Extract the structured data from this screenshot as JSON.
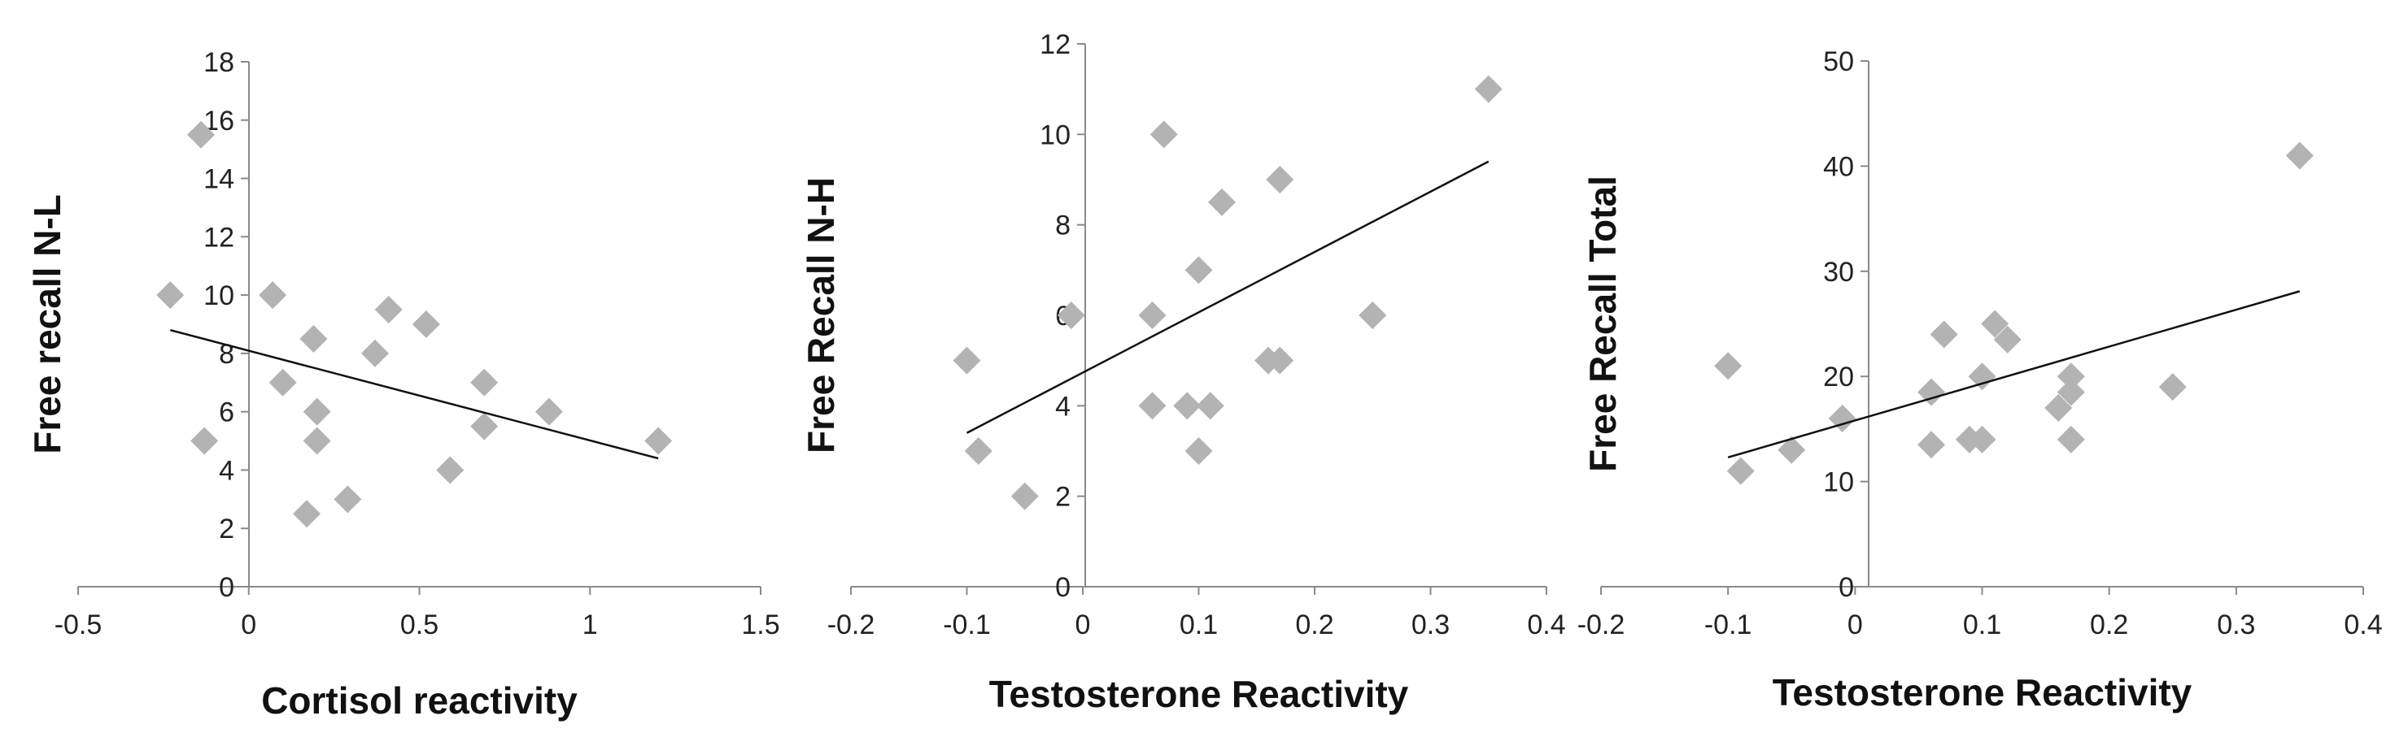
{
  "colors": {
    "marker": "#b3b3b3",
    "axis": "#8a8a8a",
    "trendline": "#111111",
    "text": "#222222"
  },
  "chart_data": [
    {
      "type": "scatter",
      "title": "",
      "xlabel": "Cortisol reactivity",
      "ylabel": "Free recall N-L",
      "xlim": [
        -0.5,
        1.5
      ],
      "ylim": [
        0,
        18
      ],
      "xticks": [
        -0.5,
        0,
        0.5,
        1,
        1.5
      ],
      "xtick_labels": [
        "-0.5",
        "0",
        "0.5",
        "1",
        "1.5"
      ],
      "yticks": [
        0,
        2,
        4,
        6,
        8,
        10,
        12,
        14,
        16,
        18
      ],
      "ytick_labels": [
        "0",
        "2",
        "4",
        "6",
        "8",
        "10",
        "12",
        "14",
        "16",
        "18"
      ],
      "points": [
        {
          "x": -0.23,
          "y": 10
        },
        {
          "x": -0.14,
          "y": 15.5
        },
        {
          "x": -0.13,
          "y": 5
        },
        {
          "x": 0.07,
          "y": 10
        },
        {
          "x": 0.1,
          "y": 7
        },
        {
          "x": 0.19,
          "y": 8.5
        },
        {
          "x": 0.2,
          "y": 6
        },
        {
          "x": 0.2,
          "y": 5
        },
        {
          "x": 0.17,
          "y": 2.5
        },
        {
          "x": 0.29,
          "y": 3
        },
        {
          "x": 0.37,
          "y": 8
        },
        {
          "x": 0.41,
          "y": 9.5
        },
        {
          "x": 0.52,
          "y": 9
        },
        {
          "x": 0.59,
          "y": 4
        },
        {
          "x": 0.69,
          "y": 7
        },
        {
          "x": 0.69,
          "y": 5.5
        },
        {
          "x": 0.88,
          "y": 6
        },
        {
          "x": 1.2,
          "y": 5
        }
      ],
      "trendline": {
        "x1": -0.23,
        "y1": 8.8,
        "x2": 1.2,
        "y2": 4.4
      }
    },
    {
      "type": "scatter",
      "title": "",
      "xlabel": "Testosterone Reactivity",
      "ylabel": "Free Recall N-H",
      "xlim": [
        -0.2,
        0.4
      ],
      "ylim": [
        0,
        12
      ],
      "xticks": [
        -0.2,
        -0.1,
        0,
        0.1,
        0.2,
        0.3,
        0.4
      ],
      "xtick_labels": [
        "-0.2",
        "-0.1",
        "0",
        "0.1",
        "0.2",
        "0.3",
        "0.4"
      ],
      "yticks": [
        0,
        2,
        4,
        6,
        8,
        10,
        12
      ],
      "ytick_labels": [
        "0",
        "2",
        "4",
        "6",
        "8",
        "10",
        "12"
      ],
      "points": [
        {
          "x": -0.1,
          "y": 5
        },
        {
          "x": -0.09,
          "y": 3
        },
        {
          "x": -0.05,
          "y": 2
        },
        {
          "x": -0.01,
          "y": 6
        },
        {
          "x": 0.06,
          "y": 6
        },
        {
          "x": 0.06,
          "y": 4
        },
        {
          "x": 0.07,
          "y": 10
        },
        {
          "x": 0.09,
          "y": 4
        },
        {
          "x": 0.1,
          "y": 7
        },
        {
          "x": 0.1,
          "y": 3
        },
        {
          "x": 0.11,
          "y": 4
        },
        {
          "x": 0.12,
          "y": 8.5
        },
        {
          "x": 0.16,
          "y": 5
        },
        {
          "x": 0.17,
          "y": 5
        },
        {
          "x": 0.17,
          "y": 9
        },
        {
          "x": 0.25,
          "y": 6
        },
        {
          "x": 0.35,
          "y": 11
        }
      ],
      "trendline": {
        "x1": -0.1,
        "y1": 3.4,
        "x2": 0.35,
        "y2": 9.4
      }
    },
    {
      "type": "scatter",
      "title": "",
      "xlabel": "Testosterone Reactivity",
      "ylabel": "Free Recall Total",
      "xlim": [
        -0.2,
        0.4
      ],
      "ylim": [
        0,
        50
      ],
      "xticks": [
        -0.2,
        -0.1,
        0,
        0.1,
        0.2,
        0.3,
        0.4
      ],
      "xtick_labels": [
        "-0.2",
        "-0.1",
        "0",
        "0.1",
        "0.2",
        "0.3",
        "0.4"
      ],
      "yticks": [
        0,
        10,
        20,
        30,
        40,
        50
      ],
      "ytick_labels": [
        "0",
        "10",
        "20",
        "30",
        "40",
        "50"
      ],
      "points": [
        {
          "x": -0.1,
          "y": 21
        },
        {
          "x": -0.09,
          "y": 11
        },
        {
          "x": -0.05,
          "y": 13
        },
        {
          "x": -0.01,
          "y": 16
        },
        {
          "x": 0.06,
          "y": 18.5
        },
        {
          "x": 0.06,
          "y": 13.5
        },
        {
          "x": 0.07,
          "y": 24
        },
        {
          "x": 0.09,
          "y": 14
        },
        {
          "x": 0.1,
          "y": 20
        },
        {
          "x": 0.1,
          "y": 14
        },
        {
          "x": 0.11,
          "y": 25
        },
        {
          "x": 0.12,
          "y": 23.5
        },
        {
          "x": 0.16,
          "y": 17
        },
        {
          "x": 0.17,
          "y": 18.5
        },
        {
          "x": 0.17,
          "y": 20
        },
        {
          "x": 0.17,
          "y": 14
        },
        {
          "x": 0.25,
          "y": 19
        },
        {
          "x": 0.35,
          "y": 41
        }
      ],
      "trendline": {
        "x1": -0.1,
        "y1": 12.3,
        "x2": 0.35,
        "y2": 28.1
      }
    }
  ]
}
